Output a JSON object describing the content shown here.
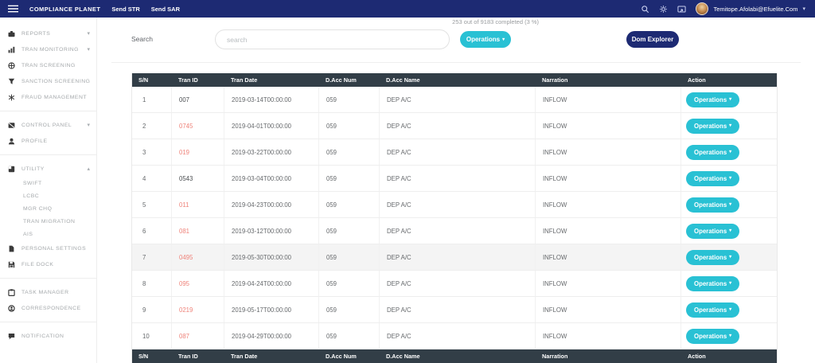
{
  "colors": {
    "navy": "#1d2a73",
    "teal": "#29c1d4",
    "slate": "#323e47",
    "red": "#ef837a"
  },
  "navbar": {
    "brand": "COMPLIANCE PLANET",
    "menu": [
      {
        "label": "Send STR"
      },
      {
        "label": "Send SAR"
      }
    ],
    "user_name": "Temitope.Afolabi@Efuelite.Com"
  },
  "sidebar": {
    "items": [
      {
        "type": "item",
        "icon": "reports-icon",
        "label": "REPORTS",
        "chevron": "down"
      },
      {
        "type": "item",
        "icon": "bar-chart-icon",
        "label": "TRAN MONITORING",
        "chevron": "down"
      },
      {
        "type": "item",
        "icon": "globe-icon",
        "label": "TRAN SCREENING"
      },
      {
        "type": "item",
        "icon": "funnel-icon",
        "label": "SANCTION SCREENING"
      },
      {
        "type": "item",
        "icon": "snowflake-icon",
        "label": "FRAUD MANAGEMENT"
      },
      {
        "type": "divider"
      },
      {
        "type": "item",
        "icon": "control-panel-icon",
        "label": "CONTROL PANEL",
        "chevron": "down"
      },
      {
        "type": "item",
        "icon": "person-icon",
        "label": "PROFILE"
      },
      {
        "type": "divider"
      },
      {
        "type": "item",
        "icon": "box-icon",
        "label": "UTILITY",
        "chevron": "up"
      },
      {
        "type": "subitem",
        "label": "SWIFT"
      },
      {
        "type": "subitem",
        "label": "LCBC"
      },
      {
        "type": "subitem",
        "label": "MGR CHQ"
      },
      {
        "type": "subitem",
        "label": "TRAN MIGRATION"
      },
      {
        "type": "subitem",
        "label": "AIS"
      },
      {
        "type": "item",
        "icon": "file-icon",
        "label": "PERSONAL SETTINGS"
      },
      {
        "type": "item",
        "icon": "disk-icon",
        "label": "FILE DOCK"
      },
      {
        "type": "divider"
      },
      {
        "type": "item",
        "icon": "clipboard-icon",
        "label": "TASK MANAGER"
      },
      {
        "type": "item",
        "icon": "headset-icon",
        "label": "CORRESPONDENCE"
      },
      {
        "type": "divider"
      },
      {
        "type": "item",
        "icon": "chat-icon",
        "label": "NOTIFICATION"
      }
    ]
  },
  "toolbar": {
    "progress_text": "253 out of 9183 completed (3 %)",
    "search_label": "Search",
    "search_placeholder": "search",
    "operations_label": "Operations",
    "dom_explorer_label": "Dom Explorer"
  },
  "table": {
    "columns": [
      "S/N",
      "Tran ID",
      "Tran Date",
      "D.Acc Num",
      "D.Acc Name",
      "Narration",
      "Action"
    ],
    "action_label": "Operations",
    "rows": [
      {
        "sn": "1",
        "tran_id": "007",
        "id_class": "plain",
        "tran_date": "2019-03-14T00:00:00",
        "d_acc_num": "059",
        "d_acc_name": "DEP A/C",
        "narration": "INFLOW"
      },
      {
        "sn": "2",
        "tran_id": "0745",
        "id_class": "flag",
        "tran_date": "2019-04-01T00:00:00",
        "d_acc_num": "059",
        "d_acc_name": "DEP A/C",
        "narration": "INFLOW"
      },
      {
        "sn": "3",
        "tran_id": "019",
        "id_class": "flag",
        "tran_date": "2019-03-22T00:00:00",
        "d_acc_num": "059",
        "d_acc_name": "DEP A/C",
        "narration": "INFLOW"
      },
      {
        "sn": "4",
        "tran_id": "0543",
        "id_class": "plain",
        "tran_date": "2019-03-04T00:00:00",
        "d_acc_num": "059",
        "d_acc_name": "DEP A/C",
        "narration": "INFLOW"
      },
      {
        "sn": "5",
        "tran_id": "011",
        "id_class": "flag",
        "tran_date": "2019-04-23T00:00:00",
        "d_acc_num": "059",
        "d_acc_name": "DEP A/C",
        "narration": "INFLOW"
      },
      {
        "sn": "6",
        "tran_id": "081",
        "id_class": "flag",
        "tran_date": "2019-03-12T00:00:00",
        "d_acc_num": "059",
        "d_acc_name": "DEP A/C",
        "narration": "INFLOW"
      },
      {
        "sn": "7",
        "tran_id": "0495",
        "id_class": "flag",
        "row_class": "active",
        "tran_date": "2019-05-30T00:00:00",
        "d_acc_num": "059",
        "d_acc_name": "DEP A/C",
        "narration": "INFLOW"
      },
      {
        "sn": "8",
        "tran_id": "095",
        "id_class": "flag",
        "tran_date": "2019-04-24T00:00:00",
        "d_acc_num": "059",
        "d_acc_name": "DEP A/C",
        "narration": "INFLOW"
      },
      {
        "sn": "9",
        "tran_id": "0219",
        "id_class": "flag",
        "tran_date": "2019-05-17T00:00:00",
        "d_acc_num": "059",
        "d_acc_name": "DEP A/C",
        "narration": "INFLOW"
      },
      {
        "sn": "10",
        "tran_id": "087",
        "id_class": "flag",
        "tran_date": "2019-04-29T00:00:00",
        "d_acc_num": "059",
        "d_acc_name": "DEP A/C",
        "narration": "INFLOW"
      }
    ]
  }
}
